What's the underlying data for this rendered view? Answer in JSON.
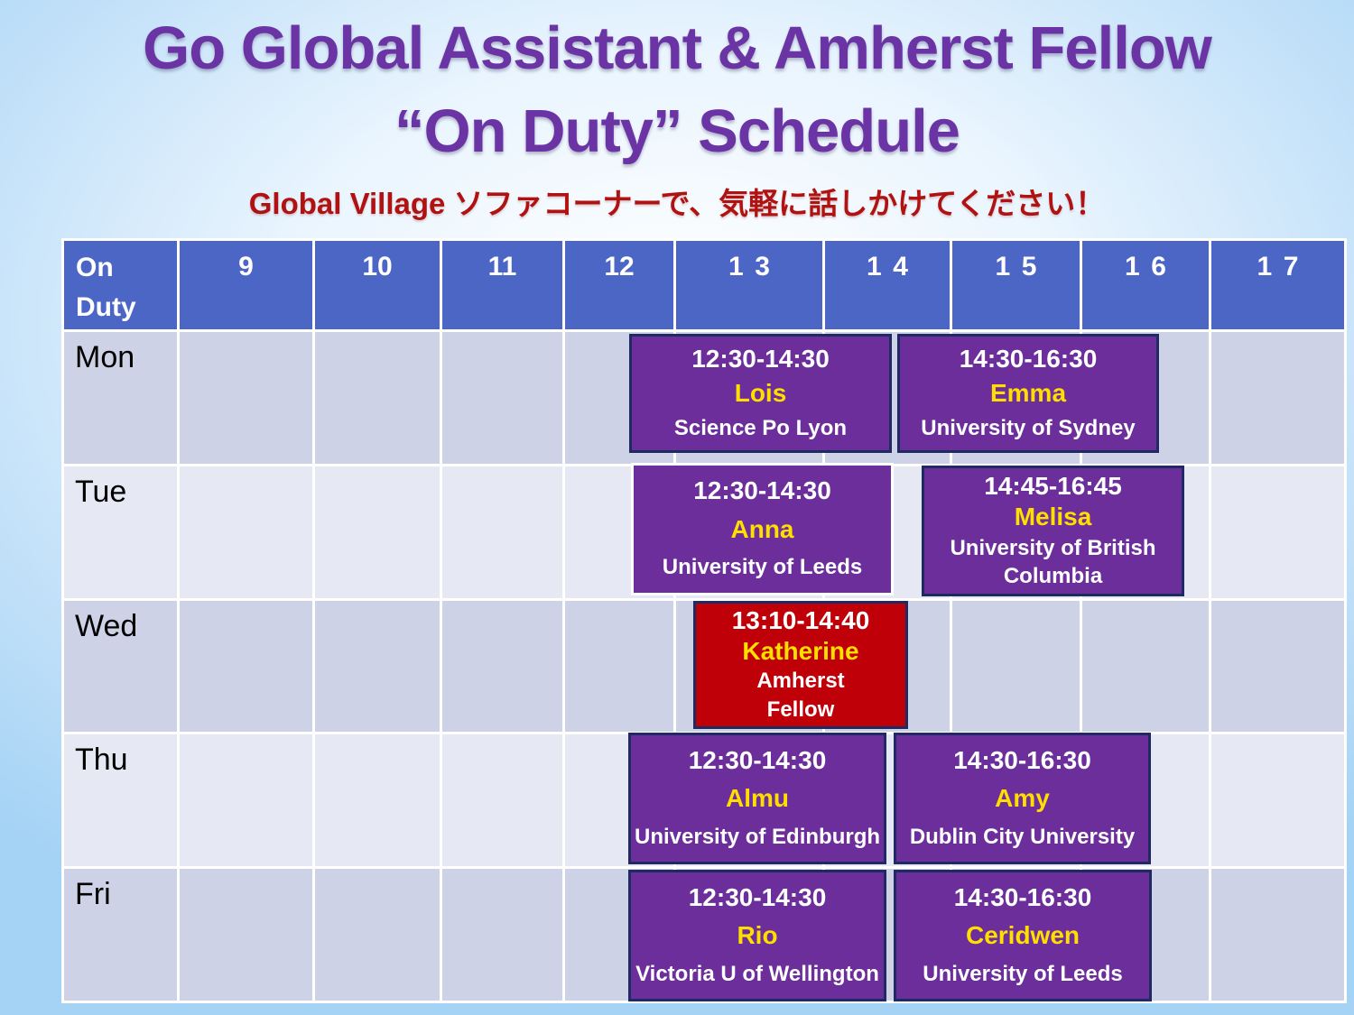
{
  "slide": {
    "title_line1": "Go Global Assistant & Amherst Fellow",
    "title_line2": "“On Duty” Schedule",
    "subtitle": "Global Village ソファコーナーで、気軽に話しかけてください！"
  },
  "colors": {
    "title_purple": "#6B34A5",
    "subtitle_red": "#B01111",
    "header_blue": "#4C66C5",
    "row_dark": "#CED2E6",
    "row_light": "#E6E8F3",
    "event_purple": "#6B2E9B",
    "event_red": "#C00008",
    "event_border_navy": "#1F2A63",
    "name_yellow": "#FFDE00",
    "background_blue": "#A5D3F5"
  },
  "schedule": {
    "corner_header": "On Duty",
    "hours": [
      "9",
      "10",
      "11",
      "12",
      "13",
      "14",
      "15",
      "16",
      "17"
    ],
    "days": [
      "Mon",
      "Tue",
      "Wed",
      "Thu",
      "Fri"
    ],
    "events": [
      {
        "day": "Mon",
        "time": "12:30-14:30",
        "name": "Lois",
        "institution": "Science Po Lyon",
        "role": "Go Global Assistant"
      },
      {
        "day": "Mon",
        "time": "14:30-16:30",
        "name": "Emma",
        "institution": "University of Sydney",
        "role": "Go Global Assistant"
      },
      {
        "day": "Tue",
        "time": "12:30-14:30",
        "name": "Anna",
        "institution": "University of Leeds",
        "role": "Go Global Assistant"
      },
      {
        "day": "Tue",
        "time": "14:45-16:45",
        "name": "Melisa",
        "institution": "University of British Columbia",
        "role": "Go Global Assistant"
      },
      {
        "day": "Wed",
        "time": "13:10-14:40",
        "name": "Katherine",
        "institution": "Amherst Fellow",
        "role": "Amherst Fellow"
      },
      {
        "day": "Thu",
        "time": "12:30-14:30",
        "name": "Almu",
        "institution": "University of Edinburgh",
        "role": "Go Global Assistant"
      },
      {
        "day": "Thu",
        "time": "14:30-16:30",
        "name": "Amy",
        "institution": "Dublin City University",
        "role": "Go Global Assistant"
      },
      {
        "day": "Fri",
        "time": "12:30-14:30",
        "name": "Rio",
        "institution": "Victoria U of Wellington",
        "role": "Go Global Assistant"
      },
      {
        "day": "Fri",
        "time": "14:30-16:30",
        "name": "Ceridwen",
        "institution": "University of Leeds",
        "role": "Go Global Assistant"
      }
    ]
  }
}
